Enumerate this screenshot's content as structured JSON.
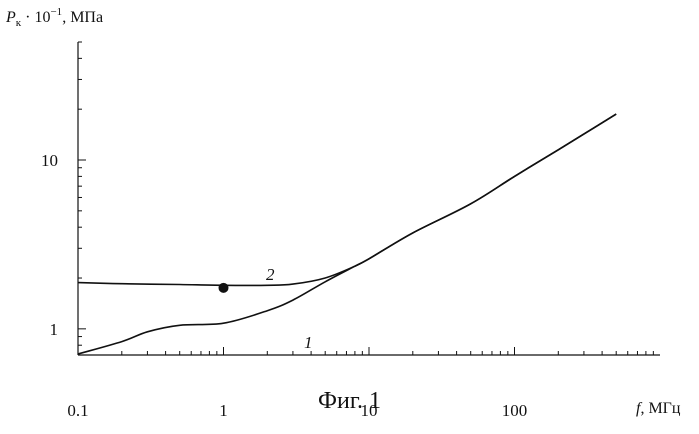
{
  "chart_data": {
    "type": "line",
    "title": "",
    "xlabel": "f, МГц",
    "ylabel": "P_к · 10^-1, МПа",
    "xscale": "log",
    "yscale": "log",
    "xlim": [
      0.1,
      1000
    ],
    "ylim": [
      0.7,
      50
    ],
    "x_ticks": [
      "0.1",
      "1",
      "10",
      "100"
    ],
    "y_ticks": [
      "1",
      "10"
    ],
    "grid": false,
    "legend": "none",
    "series": [
      {
        "name": "1",
        "x": [
          0.1,
          0.2,
          0.3,
          0.5,
          1,
          2,
          3,
          5,
          8,
          10,
          20,
          50,
          100,
          200,
          500
        ],
        "y": [
          0.71,
          0.84,
          0.96,
          1.05,
          1.08,
          1.28,
          1.48,
          1.9,
          2.35,
          2.6,
          3.7,
          5.5,
          8.0,
          11.5,
          18.7
        ]
      },
      {
        "name": "2",
        "x": [
          0.1,
          0.2,
          0.5,
          1,
          2,
          3,
          5,
          8,
          10,
          20,
          50,
          100,
          200,
          500
        ],
        "y": [
          1.88,
          1.85,
          1.83,
          1.81,
          1.81,
          1.84,
          2.0,
          2.35,
          2.6,
          3.7,
          5.5,
          8.0,
          11.5,
          18.7
        ]
      }
    ],
    "markers": [
      {
        "x": 1,
        "y": 1.75
      }
    ],
    "curve_labels": [
      "2",
      "1"
    ]
  },
  "figure": {
    "caption": "Фиг. 1"
  }
}
